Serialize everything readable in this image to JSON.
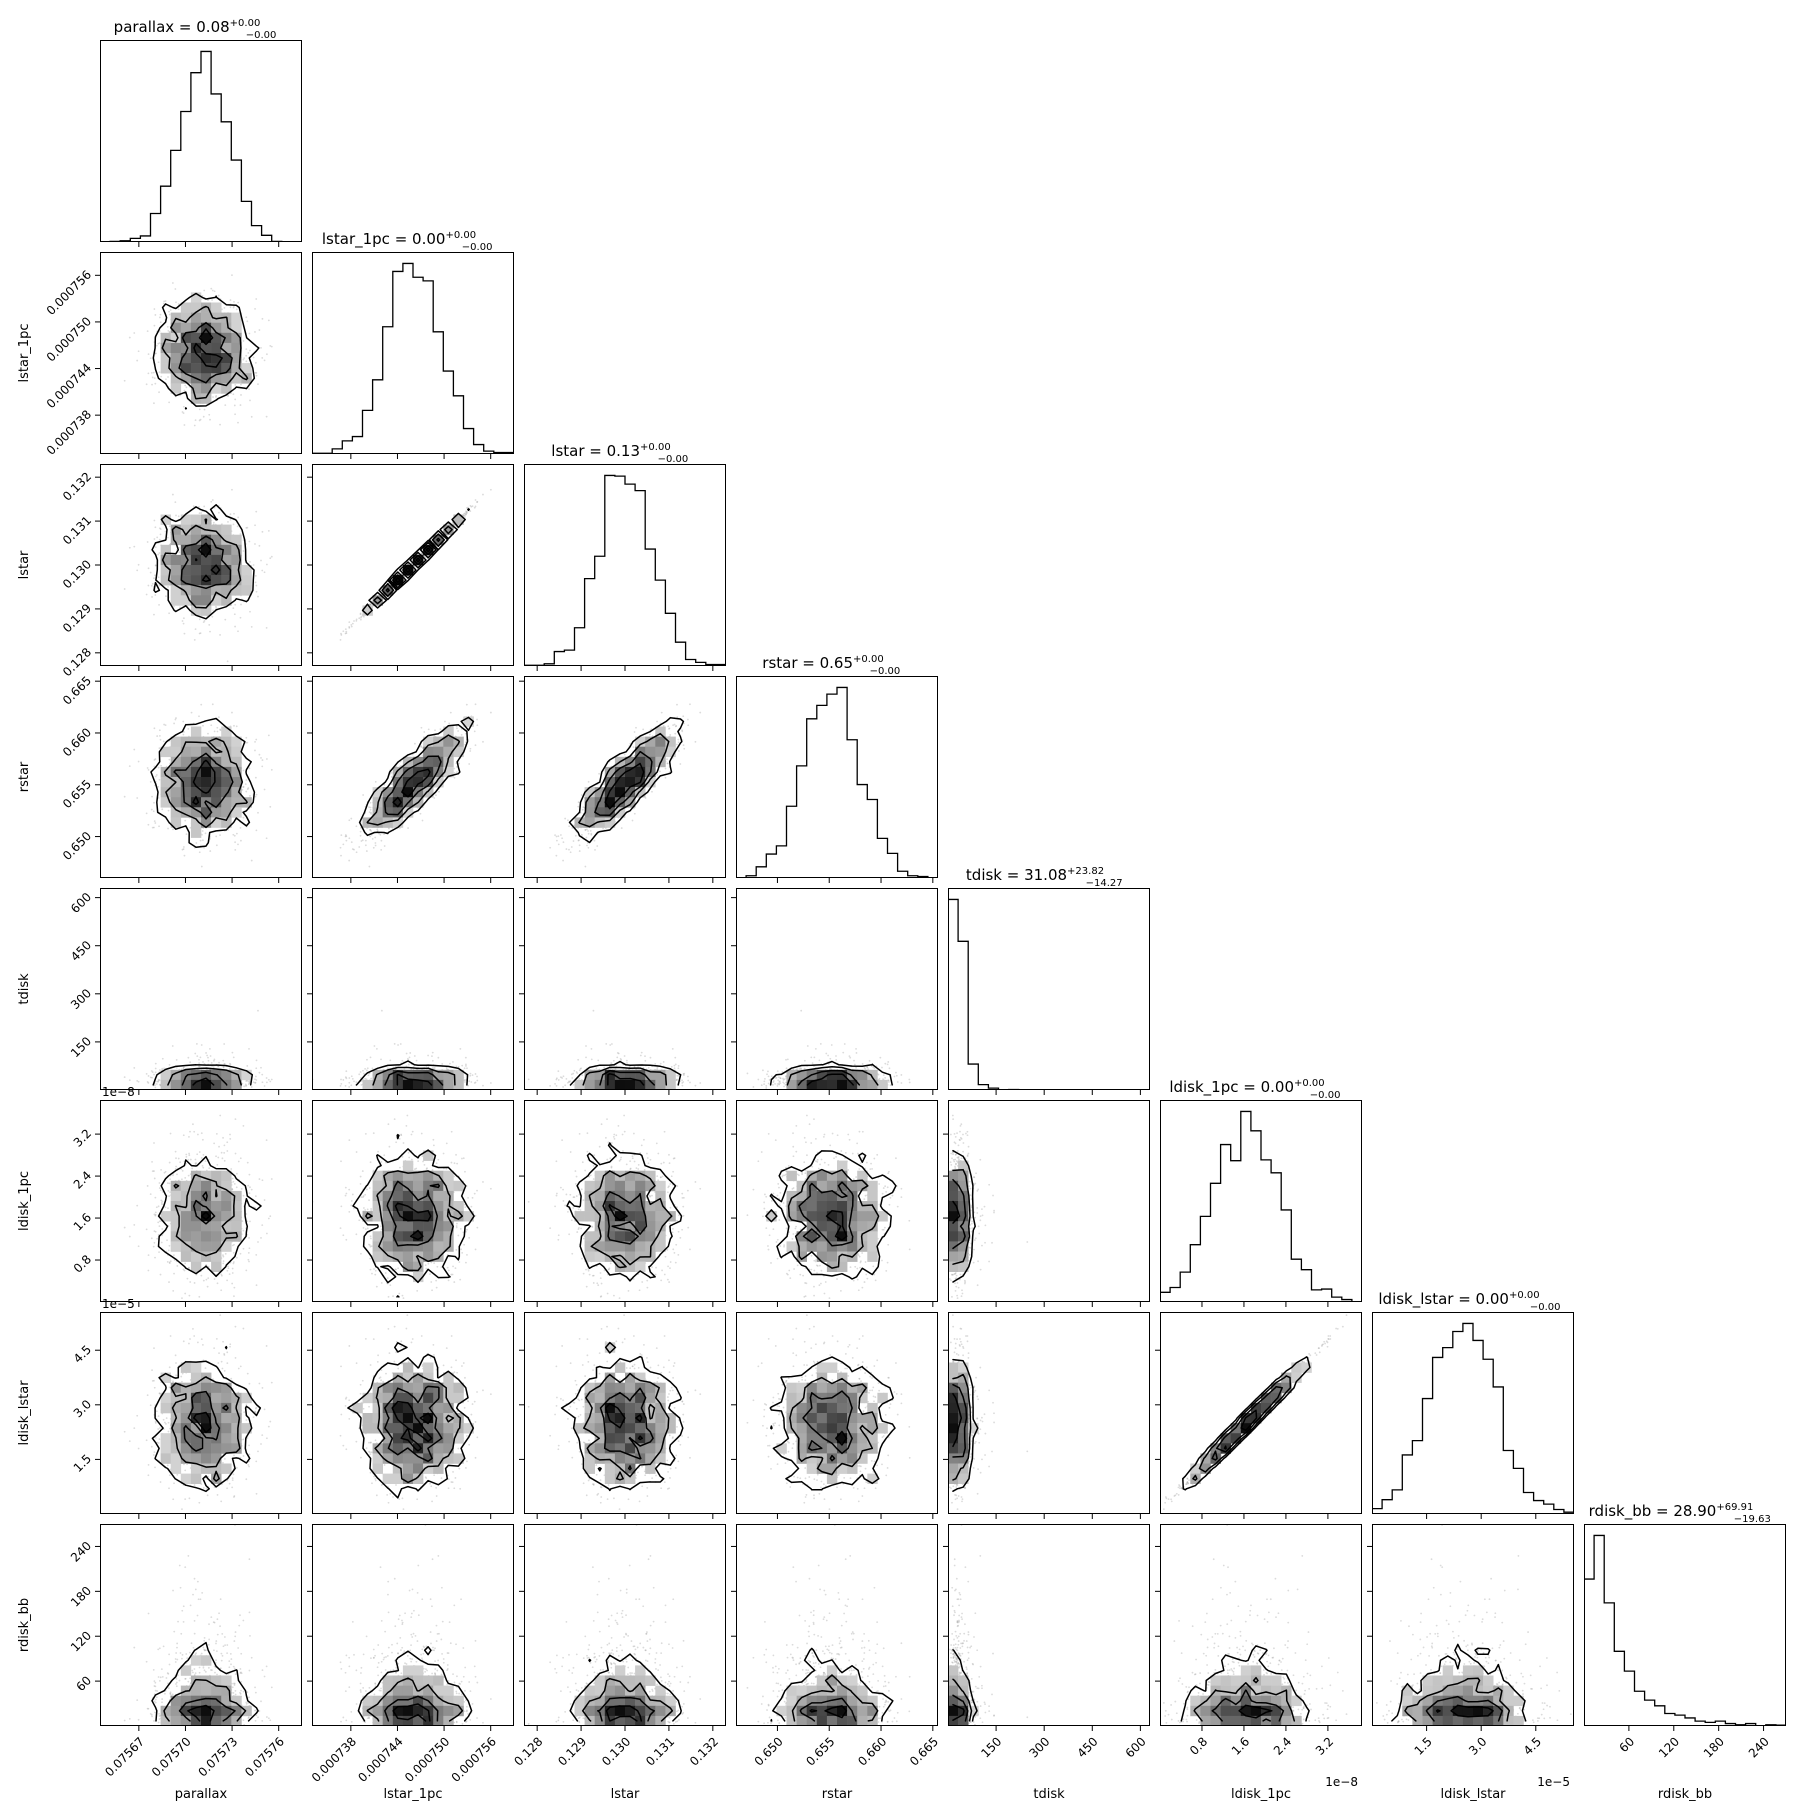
{
  "chart_data": {
    "type": "corner",
    "parameters": [
      {
        "name": "parallax",
        "axis_label": "parallax",
        "title_value": "0.08",
        "title_plus": "+0.00",
        "title_minus": "−0.00",
        "range": [
          0.075645,
          0.075775
        ],
        "ticks": [
          0.07567,
          0.0757,
          0.07573,
          0.07576
        ],
        "tick_labels": [
          "0.07567",
          "0.07570",
          "0.07573",
          "0.07576"
        ],
        "multiplier": "",
        "median": 0.075712,
        "sigma": 1.55e-05,
        "skew": "normal"
      },
      {
        "name": "lstar_1pc",
        "axis_label": "lstar_1pc",
        "title_value": "0.00",
        "title_plus": "+0.00",
        "title_minus": "−0.00",
        "range": [
          0.000733,
          0.000759
        ],
        "ticks": [
          0.000738,
          0.000744,
          0.00075,
          0.000756
        ],
        "tick_labels": [
          "0.000738",
          "0.000744",
          "0.000750",
          "0.000756"
        ],
        "multiplier": "",
        "median": 0.000746,
        "sigma": 3.5e-06,
        "skew": "normal"
      },
      {
        "name": "lstar",
        "axis_label": "lstar",
        "title_value": "0.13",
        "title_plus": "+0.00",
        "title_minus": "−0.00",
        "range": [
          0.1277,
          0.1323
        ],
        "ticks": [
          0.128,
          0.129,
          0.13,
          0.131,
          0.132
        ],
        "tick_labels": [
          "0.128",
          "0.129",
          "0.130",
          "0.131",
          "0.132"
        ],
        "multiplier": "",
        "median": 0.13,
        "sigma": 0.00061,
        "skew": "normal"
      },
      {
        "name": "rstar",
        "axis_label": "rstar",
        "title_value": "0.65",
        "title_plus": "+0.00",
        "title_minus": "−0.00",
        "range": [
          0.646,
          0.6655
        ],
        "ticks": [
          0.65,
          0.655,
          0.66,
          0.665
        ],
        "tick_labels": [
          "0.650",
          "0.655",
          "0.660",
          "0.665"
        ],
        "multiplier": "",
        "median": 0.6552,
        "sigma": 0.0027,
        "skew": "normal"
      },
      {
        "name": "tdisk",
        "axis_label": "tdisk",
        "title_value": "31.08",
        "title_plus": "+23.82",
        "title_minus": "−14.27",
        "range": [
          0,
          630
        ],
        "ticks": [
          150,
          300,
          450,
          600
        ],
        "tick_labels": [
          "150",
          "300",
          "450",
          "600"
        ],
        "multiplier": "",
        "median": 31.08,
        "sigma": 18,
        "skew": "right"
      },
      {
        "name": "ldisk_1pc",
        "axis_label": "ldisk_1pc",
        "title_value": "0.00",
        "title_plus": "+0.00",
        "title_minus": "−0.00",
        "range": [
          0.0,
          3.85e-08
        ],
        "ticks": [
          8e-09,
          1.6e-08,
          2.4e-08,
          3.2e-08
        ],
        "tick_labels": [
          "0.8",
          "1.6",
          "2.4",
          "3.2"
        ],
        "multiplier": "1e−8",
        "median": 1.65e-08,
        "sigma": 6.5e-09,
        "skew": "normal"
      },
      {
        "name": "ldisk_lstar",
        "axis_label": "ldisk_lstar",
        "title_value": "0.00",
        "title_plus": "+0.00",
        "title_minus": "−0.00",
        "range": [
          0.0,
          5.55e-05
        ],
        "ticks": [
          1.5e-05,
          3e-05,
          4.5e-05
        ],
        "tick_labels": [
          "1.5",
          "3.0",
          "4.5"
        ],
        "multiplier": "1e−5",
        "median": 2.5e-05,
        "sigma": 9.5e-06,
        "skew": "normal"
      },
      {
        "name": "rdisk_bb",
        "axis_label": "rdisk_bb",
        "title_value": "28.90",
        "title_plus": "+69.91",
        "title_minus": "−19.63",
        "range": [
          0,
          270
        ],
        "ticks": [
          60,
          120,
          180,
          240
        ],
        "tick_labels": [
          "60",
          "120",
          "180",
          "240"
        ],
        "multiplier": "",
        "median": 28.9,
        "sigma": 40,
        "skew": "right"
      }
    ],
    "correlations": [
      {
        "pair": [
          "lstar_1pc",
          "lstar"
        ],
        "rho": 0.995
      },
      {
        "pair": [
          "lstar_1pc",
          "rstar"
        ],
        "rho": 0.85
      },
      {
        "pair": [
          "lstar",
          "rstar"
        ],
        "rho": 0.85
      },
      {
        "pair": [
          "ldisk_1pc",
          "ldisk_lstar"
        ],
        "rho": 0.995
      }
    ],
    "bins": 20,
    "contour_levels": 4,
    "histtype": "step"
  }
}
